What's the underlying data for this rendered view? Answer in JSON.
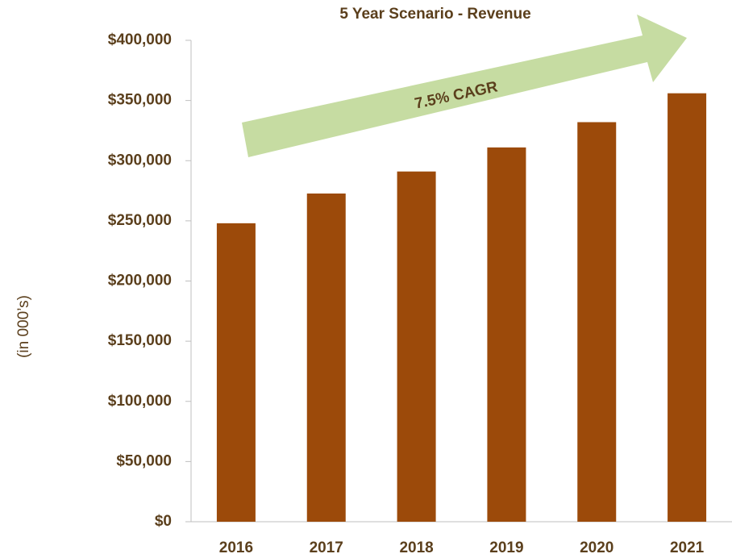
{
  "chart_data": {
    "type": "bar",
    "title": "5 Year Scenario - Revenue",
    "y_axis_label": "(in 000’s)",
    "annotation": "7.5% CAGR",
    "categories": [
      "2016",
      "2017",
      "2018",
      "2019",
      "2020",
      "2021"
    ],
    "values": [
      248000,
      272700,
      291000,
      311000,
      332000,
      356000
    ],
    "color": "#9c4a0a",
    "ylim": [
      0,
      400000
    ],
    "yticks": [
      {
        "value": 0,
        "label": "$0"
      },
      {
        "value": 50000,
        "label": "$50,000"
      },
      {
        "value": 100000,
        "label": "$100,000"
      },
      {
        "value": 150000,
        "label": "$150,000"
      },
      {
        "value": 200000,
        "label": "$200,000"
      },
      {
        "value": 250000,
        "label": "$250,000"
      },
      {
        "value": 300000,
        "label": "$300,000"
      },
      {
        "value": 350000,
        "label": "$350,000"
      },
      {
        "value": 400000,
        "label": "$400,000"
      }
    ]
  }
}
